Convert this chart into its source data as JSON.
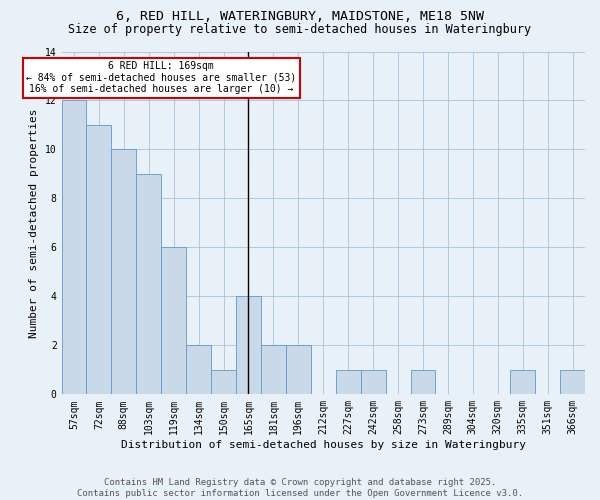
{
  "title": "6, RED HILL, WATERINGBURY, MAIDSTONE, ME18 5NW",
  "subtitle": "Size of property relative to semi-detached houses in Wateringbury",
  "xlabel": "Distribution of semi-detached houses by size in Wateringbury",
  "ylabel": "Number of semi-detached properties",
  "categories": [
    "57sqm",
    "72sqm",
    "88sqm",
    "103sqm",
    "119sqm",
    "134sqm",
    "150sqm",
    "165sqm",
    "181sqm",
    "196sqm",
    "212sqm",
    "227sqm",
    "242sqm",
    "258sqm",
    "273sqm",
    "289sqm",
    "304sqm",
    "320sqm",
    "335sqm",
    "351sqm",
    "366sqm"
  ],
  "values": [
    12,
    11,
    10,
    9,
    6,
    2,
    1,
    4,
    2,
    2,
    0,
    1,
    1,
    0,
    1,
    0,
    0,
    0,
    1,
    0,
    1
  ],
  "bar_color": "#c9d9e8",
  "bar_edge_color": "#5b9bd5",
  "highlight_index": 7,
  "highlight_line_color": "#000000",
  "annotation_text": "6 RED HILL: 169sqm\n← 84% of semi-detached houses are smaller (53)\n16% of semi-detached houses are larger (10) →",
  "annotation_box_color": "#ffffff",
  "annotation_box_edge_color": "#cc0000",
  "ylim": [
    0,
    14
  ],
  "yticks": [
    0,
    2,
    4,
    6,
    8,
    10,
    12,
    14
  ],
  "background_color": "#e8f0f8",
  "plot_background_color": "#e8f0f8",
  "footer": "Contains HM Land Registry data © Crown copyright and database right 2025.\nContains public sector information licensed under the Open Government Licence v3.0.",
  "title_fontsize": 9.5,
  "subtitle_fontsize": 8.5,
  "axis_label_fontsize": 8,
  "tick_fontsize": 7,
  "annotation_fontsize": 7,
  "footer_fontsize": 6.5
}
